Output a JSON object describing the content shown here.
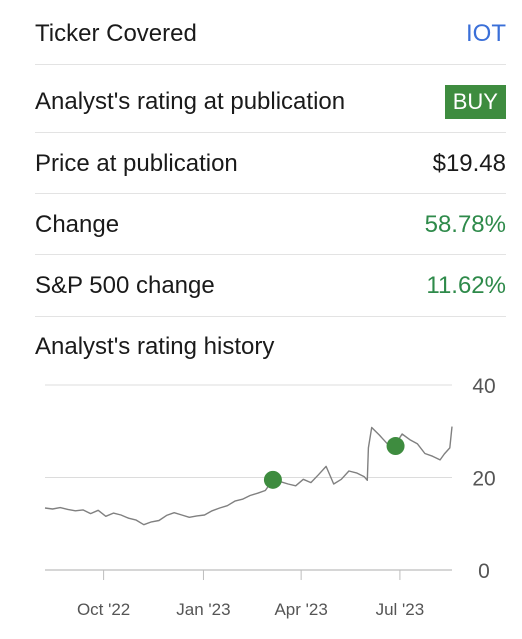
{
  "rows": [
    {
      "label": "Ticker Covered",
      "value": "IOT",
      "style": "link"
    },
    {
      "label": "Analyst's rating at publication",
      "value": "BUY",
      "style": "badge"
    },
    {
      "label": "Price at publication",
      "value": "$19.48",
      "style": "plain"
    },
    {
      "label": "Change",
      "value": "58.78%",
      "style": "positive"
    },
    {
      "label": "S&P 500 change",
      "value": "11.62%",
      "style": "positive"
    }
  ],
  "history_title": "Analyst's rating history",
  "colors": {
    "link": "#3a6fd8",
    "positive": "#2e8a4a",
    "badge_bg": "#3e8c3f",
    "price_line": "#808080",
    "rating_marker": "#3e8c3f"
  },
  "chart_data": {
    "type": "line",
    "xlabel": "",
    "ylabel": "",
    "ylim": [
      0,
      40
    ],
    "y_ticks": [
      0,
      20,
      40
    ],
    "x_range": [
      "2022-08-08",
      "2023-08-18"
    ],
    "x_ticks": [
      {
        "label": "Oct '22",
        "date": "2022-10-01"
      },
      {
        "label": "Jan '23",
        "date": "2023-01-01"
      },
      {
        "label": "Apr '23",
        "date": "2023-04-01"
      },
      {
        "label": "Jul '23",
        "date": "2023-07-01"
      }
    ],
    "grid": true,
    "y_axis_position": "right",
    "series": [
      {
        "points": [
          [
            "2022-08-08",
            13.4
          ],
          [
            "2022-08-15",
            13.2
          ],
          [
            "2022-08-22",
            13.5
          ],
          [
            "2022-08-29",
            13.1
          ],
          [
            "2022-09-05",
            12.8
          ],
          [
            "2022-09-12",
            13.0
          ],
          [
            "2022-09-19",
            12.2
          ],
          [
            "2022-09-26",
            12.9
          ],
          [
            "2022-10-03",
            11.6
          ],
          [
            "2022-10-10",
            12.3
          ],
          [
            "2022-10-17",
            11.9
          ],
          [
            "2022-10-24",
            11.2
          ],
          [
            "2022-10-31",
            10.8
          ],
          [
            "2022-11-07",
            9.8
          ],
          [
            "2022-11-14",
            10.4
          ],
          [
            "2022-11-21",
            10.7
          ],
          [
            "2022-11-28",
            11.8
          ],
          [
            "2022-12-05",
            12.4
          ],
          [
            "2022-12-12",
            11.9
          ],
          [
            "2022-12-19",
            11.4
          ],
          [
            "2022-12-26",
            11.7
          ],
          [
            "2023-01-02",
            11.9
          ],
          [
            "2023-01-09",
            12.8
          ],
          [
            "2023-01-16",
            13.4
          ],
          [
            "2023-01-23",
            13.9
          ],
          [
            "2023-01-30",
            14.9
          ],
          [
            "2023-02-06",
            15.3
          ],
          [
            "2023-02-13",
            16.1
          ],
          [
            "2023-02-20",
            16.6
          ],
          [
            "2023-02-27",
            17.2
          ],
          [
            "2023-03-06",
            19.5
          ],
          [
            "2023-03-13",
            19.1
          ],
          [
            "2023-03-20",
            18.6
          ],
          [
            "2023-03-27",
            18.2
          ],
          [
            "2023-04-03",
            19.6
          ],
          [
            "2023-04-10",
            18.9
          ],
          [
            "2023-04-17",
            20.6
          ],
          [
            "2023-04-24",
            22.4
          ],
          [
            "2023-05-01",
            18.6
          ],
          [
            "2023-05-08",
            19.6
          ],
          [
            "2023-05-15",
            21.4
          ],
          [
            "2023-05-22",
            21.0
          ],
          [
            "2023-05-29",
            20.2
          ],
          [
            "2023-06-01",
            19.4
          ],
          [
            "2023-06-02",
            26.4
          ],
          [
            "2023-06-05",
            30.8
          ],
          [
            "2023-06-12",
            29.2
          ],
          [
            "2023-06-19",
            27.4
          ],
          [
            "2023-06-26",
            26.8
          ],
          [
            "2023-07-03",
            29.4
          ],
          [
            "2023-07-10",
            28.2
          ],
          [
            "2023-07-17",
            27.3
          ],
          [
            "2023-07-24",
            25.2
          ],
          [
            "2023-07-31",
            24.6
          ],
          [
            "2023-08-07",
            23.8
          ],
          [
            "2023-08-11",
            25.1
          ],
          [
            "2023-08-16",
            26.4
          ],
          [
            "2023-08-18",
            31.0
          ]
        ]
      }
    ],
    "markers": [
      {
        "date": "2023-03-06",
        "value": 19.5
      },
      {
        "date": "2023-06-27",
        "value": 26.8
      }
    ]
  }
}
